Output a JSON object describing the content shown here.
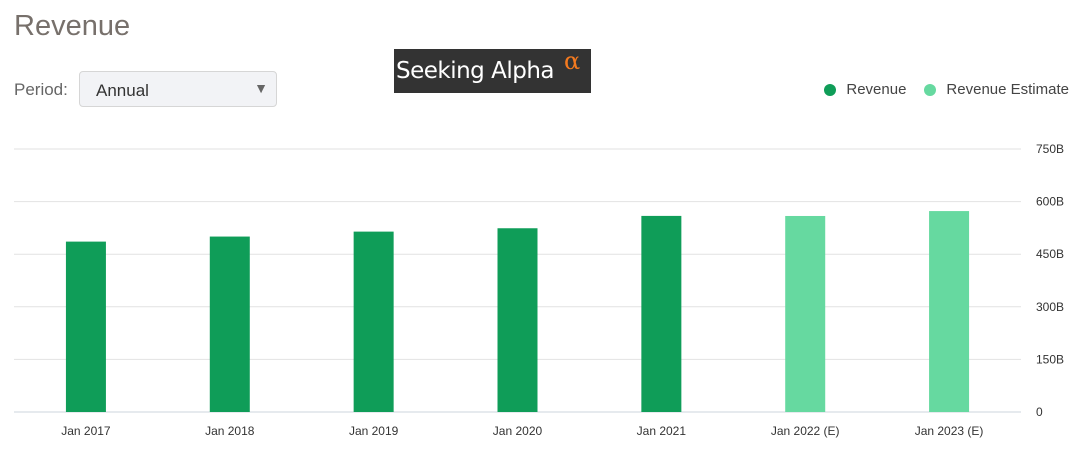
{
  "header": {
    "title": "Revenue",
    "period_label": "Period:",
    "period_value": "Annual"
  },
  "logo": {
    "text": "Seeking Alpha",
    "symbol": "α"
  },
  "colors": {
    "revenue": "#0f9d58",
    "estimate": "#66d9a0"
  },
  "chart_data": {
    "type": "bar",
    "title": "Revenue",
    "categories": [
      "Jan 2017",
      "Jan 2018",
      "Jan 2019",
      "Jan 2020",
      "Jan 2021",
      "Jan 2022 (E)",
      "Jan 2023 (E)"
    ],
    "series": [
      {
        "name": "Revenue",
        "values": [
          485.9,
          500.3,
          514.4,
          524.0,
          559.2,
          null,
          null
        ]
      },
      {
        "name": "Revenue Estimate",
        "values": [
          null,
          null,
          null,
          null,
          null,
          559,
          573
        ]
      }
    ],
    "unit": "B",
    "ylim": [
      0,
      750
    ],
    "yticks": [
      "0",
      "150B",
      "300B",
      "450B",
      "600B",
      "750B"
    ],
    "grid": true,
    "legend": "top-right",
    "yaxis_side": "right"
  }
}
